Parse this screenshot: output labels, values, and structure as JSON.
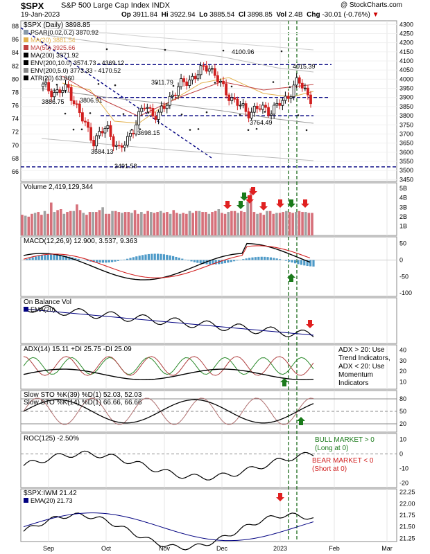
{
  "header": {
    "symbol": "$SPX",
    "name": "S&P 500 Large Cap Index",
    "exchange": "INDX",
    "copyright": "@ StockCharts.com",
    "date": "19-Jan-2023",
    "open_label": "Op",
    "open": "3911.84",
    "high_label": "Hi",
    "high": "3922.94",
    "low_label": "Lo",
    "low": "3885.54",
    "close_label": "Cl",
    "close": "3898.85",
    "vol_label": "Vol",
    "vol": "2.4B",
    "chg_label": "Chg",
    "chg": "-30.01 (-0.76%)"
  },
  "x_axis_labels": [
    "Sep",
    "Oct",
    "Nov",
    "Dec",
    "2023",
    "Feb",
    "Mar"
  ],
  "chart_data": [
    {
      "type": "line",
      "panel": "price",
      "title": "$SPX (Daily) 3898.85",
      "legend": [
        {
          "label": "PSAR(0.02,0.2) 3870.92",
          "color": "#8899aa"
        },
        {
          "label": "MA(20) 3881.54",
          "color": "#e3b04b"
        },
        {
          "label": "MA(50) 3925.66",
          "color": "#c04040"
        },
        {
          "label": "MA(200) 3971.92",
          "color": "#000000"
        },
        {
          "label": "ENV(200,10.0) 3574.73 - 4369.12",
          "color": "#000000"
        },
        {
          "label": "ENV(200,5.0) 3773.33 - 4170.52",
          "color": "#888888"
        },
        {
          "label": "ATR(20) 63.860",
          "color": "#000000"
        }
      ],
      "left_ticks": [
        "88",
        "86",
        "84",
        "82",
        "80",
        "78",
        "76",
        "74",
        "72",
        "70",
        "68",
        "66"
      ],
      "right_ticks": [
        "4300",
        "4250",
        "4200",
        "4150",
        "4100",
        "4050",
        "4000",
        "3950",
        "3900",
        "3850",
        "3800",
        "3750",
        "3700",
        "3650",
        "3600",
        "3550",
        "3500",
        "3450"
      ],
      "ylim": [
        3440,
        4320
      ],
      "x": [
        "Aug-29",
        "Sep-05",
        "Sep-12",
        "Sep-19",
        "Sep-26",
        "Oct-03",
        "Oct-10",
        "Oct-17",
        "Oct-24",
        "Oct-31",
        "Nov-07",
        "Nov-14",
        "Nov-21",
        "Nov-28",
        "Dec-05",
        "Dec-12",
        "Dec-19",
        "Dec-26",
        "Jan-03",
        "Jan-09",
        "Jan-13",
        "Jan-19"
      ],
      "close": [
        3960,
        3925,
        3950,
        3790,
        3660,
        3740,
        3600,
        3720,
        3860,
        3790,
        3905,
        3980,
        4020,
        4080,
        3960,
        3880,
        3820,
        3840,
        3830,
        3890,
        3990,
        3898
      ],
      "annotations": [
        "3886.75",
        "3806.91",
        "3911.79",
        "4100.96",
        "4015.39",
        "3698.15",
        "3764.49",
        "3584.13",
        "3491.58"
      ],
      "horizontal_levels": [
        4080,
        3900,
        3800,
        3520
      ]
    },
    {
      "type": "bar",
      "panel": "volume",
      "title": "Volume 2,419,129,344",
      "right_ticks": [
        "5B",
        "4B",
        "3B",
        "2B",
        "1B"
      ],
      "ylim": [
        0,
        5.6
      ],
      "values_billion": [
        2.2,
        2.1,
        2.0,
        2.3,
        2.4,
        2.5,
        2.2,
        2.6,
        2.3,
        3.5,
        2.5,
        2.7,
        2.8,
        2.3,
        2.5,
        2.6,
        2.6,
        3.3,
        2.7,
        2.4,
        2.2,
        2.5,
        2.5,
        2.5,
        2.7,
        3.0,
        2.3,
        2.3,
        2.6,
        2.6,
        2.5,
        2.4,
        2.5,
        2.5,
        2.4,
        2.7,
        2.3,
        2.5,
        2.3,
        2.6,
        2.5,
        2.4,
        2.5,
        2.6,
        2.4,
        2.5,
        2.3,
        2.7,
        2.4,
        2.3,
        2.4,
        2.3,
        2.6,
        2.4,
        2.6,
        2.6,
        2.5,
        2.5,
        2.3,
        2.5,
        2.6,
        2.8,
        2.4,
        2.3,
        2.5,
        2.6,
        2.6,
        2.4,
        2.6,
        2.5,
        3.6,
        5.0,
        2.5,
        2.3,
        2.4,
        2.2,
        2.6,
        2.6,
        2.3,
        2.4,
        2.4,
        2.5,
        2.6,
        2.5,
        2.4,
        2.5,
        2.6,
        2.5,
        2.5,
        2.4,
        2.4
      ]
    },
    {
      "type": "line",
      "panel": "macd",
      "title": "MACD(12,26,9) 12.900, 3.537, 9.363",
      "right_ticks": [
        "50",
        "0",
        "-50",
        "-100"
      ],
      "ylim": [
        -110,
        70
      ]
    },
    {
      "type": "line",
      "panel": "obv",
      "title": "On Balance Vol",
      "legend": [
        {
          "label": "EMA(20)",
          "color": "#000080"
        }
      ]
    },
    {
      "type": "line",
      "panel": "adx",
      "title": "ADX(14) 15.11 +DI 25.75 -DI 25.09",
      "right_ticks": [
        "40",
        "30",
        "20",
        "10"
      ],
      "ylim": [
        3,
        45
      ],
      "note": [
        "ADX > 20: Use",
        "Trend Indicators,",
        "ADX < 20: Use",
        "Momentum",
        "Indicators"
      ]
    },
    {
      "type": "line",
      "panel": "stochastics",
      "title": "Slow STO %K(39) %D(1) 52.03, 52.03",
      "title2": "Slow STO %K(14) %D(1) 66.66, 66.66",
      "right_ticks": [
        "80",
        "50",
        "20"
      ],
      "levels": [
        80,
        50,
        20
      ]
    },
    {
      "type": "line",
      "panel": "roc",
      "title": "ROC(125) -2.50%",
      "right_ticks": [
        "10",
        "0",
        "-10",
        "-20"
      ],
      "ylim": [
        -23,
        14
      ],
      "note_bull": [
        "BULL MARKET > 0",
        "(Long at 0)"
      ],
      "note_bear": [
        "BEAR MARKET < 0",
        "(Short at 0)"
      ]
    },
    {
      "type": "line",
      "panel": "ratio",
      "title": "$SPX:IWM 21.42",
      "legend": [
        {
          "label": "EMA(20) 21.73",
          "color": "#000080"
        }
      ],
      "right_ticks": [
        "22.25",
        "22.00",
        "21.75",
        "21.50",
        "21.25"
      ],
      "ylim": [
        21.18,
        22.32
      ]
    }
  ],
  "colors": {
    "up": "#000000",
    "down": "#d11f1f",
    "vol_up": "#a0a0a0",
    "vol_down": "#d6707a",
    "macd_hist": "#4d9ac8",
    "arrow_up": "#1a7a1a",
    "arrow_down": "#e02020",
    "env": "#000080"
  }
}
